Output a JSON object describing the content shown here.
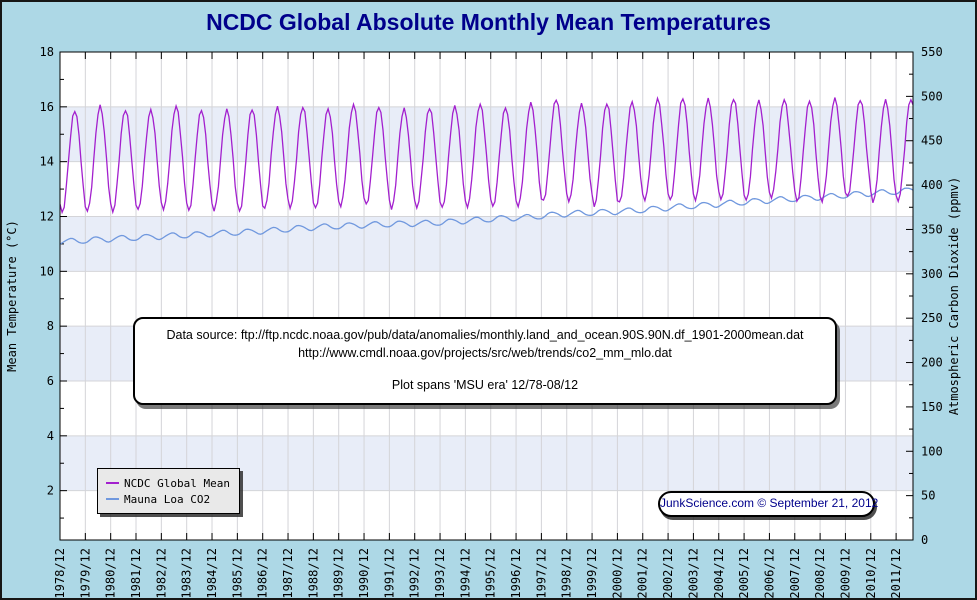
{
  "page": {
    "title": "NCDC Global Absolute Monthly Mean Temperatures",
    "title_color": "#00008B",
    "background_color": "#ADD8E6"
  },
  "annotation_box": {
    "line1": "Data source: ftp://ftp.ncdc.noaa.gov/pub/data/anomalies/monthly.land_and_ocean.90S.90N.df_1901-2000mean.dat",
    "line2": "http://www.cmdl.noaa.gov/projects/src/web/trends/co2_mm_mlo.dat",
    "line3": "Plot spans 'MSU era' 12/78-08/12"
  },
  "credit_box": {
    "text": "JunkScience.com © September 21, 2012"
  },
  "legend": {
    "items": [
      {
        "label": "NCDC Global Mean",
        "color": "#A320CE"
      },
      {
        "label": "Mauna Loa CO2",
        "color": "#7098DE"
      }
    ]
  },
  "chart_data": {
    "type": "line",
    "title": "NCDC Global Absolute Monthly Mean Temperatures",
    "x_axis": {
      "start": "1978/12",
      "end": "2012/08",
      "months_spanned": 405,
      "tick_labels": [
        "1978/12",
        "1979/12",
        "1980/12",
        "1981/12",
        "1982/12",
        "1983/12",
        "1984/12",
        "1985/12",
        "1986/12",
        "1987/12",
        "1988/12",
        "1989/12",
        "1990/12",
        "1991/12",
        "1992/12",
        "1993/12",
        "1994/12",
        "1995/12",
        "1996/12",
        "1997/12",
        "1998/12",
        "1999/12",
        "2000/12",
        "2001/12",
        "2002/12",
        "2003/12",
        "2004/12",
        "2005/12",
        "2006/12",
        "2007/12",
        "2008/12",
        "2009/12",
        "2010/12",
        "2011/12"
      ]
    },
    "y_left": {
      "label": "Mean Temperature (°C)",
      "min": 0.2,
      "max": 18,
      "ticks": [
        18,
        16,
        14,
        12,
        10,
        8,
        6,
        4,
        2
      ],
      "minor_step": 1
    },
    "y_right": {
      "label": "Atmospheric Carbon Dioxide (ppmv)",
      "min": 0,
      "max": 550,
      "ticks": [
        550,
        500,
        450,
        400,
        350,
        300,
        250,
        200,
        150,
        100,
        50,
        0
      ],
      "minor_step": 25
    },
    "series": [
      {
        "name": "NCDC Global Mean",
        "axis": "left",
        "color": "#A320CE",
        "resolution": "monthly",
        "seasonality": "annual cycle: minimum in January, maximum in July",
        "years": [
          1978,
          1979,
          1980,
          1981,
          1982,
          1983,
          1984,
          1985,
          1986,
          1987,
          1988,
          1989,
          1990,
          1991,
          1992,
          1993,
          1994,
          1995,
          1996,
          1997,
          1998,
          1999,
          2000,
          2001,
          2002,
          2003,
          2004,
          2005,
          2006,
          2007,
          2008,
          2009,
          2010,
          2011,
          2012
        ],
        "annual_min_c": [
          12.2,
          12.1,
          12.2,
          12.2,
          12.2,
          12.3,
          12.2,
          12.2,
          12.2,
          12.3,
          12.3,
          12.3,
          12.4,
          12.4,
          12.3,
          12.3,
          12.3,
          12.4,
          12.3,
          12.4,
          12.6,
          12.5,
          12.4,
          12.5,
          12.6,
          12.6,
          12.6,
          12.6,
          12.6,
          12.7,
          12.5,
          12.6,
          12.7,
          12.5,
          12.6
        ],
        "annual_max_c": [
          15.9,
          15.9,
          16.0,
          15.9,
          15.9,
          16.0,
          15.9,
          15.9,
          15.9,
          16.0,
          16.0,
          15.9,
          16.1,
          16.0,
          15.9,
          16.0,
          16.0,
          16.1,
          16.0,
          16.1,
          16.3,
          16.1,
          16.1,
          16.2,
          16.3,
          16.3,
          16.3,
          16.3,
          16.2,
          16.3,
          16.2,
          16.3,
          16.3,
          16.2,
          16.3
        ]
      },
      {
        "name": "Mauna Loa CO2",
        "axis": "right",
        "color": "#7098DE",
        "resolution": "monthly",
        "seasonality": "annual sawtooth: peak in May, trough in autumn, ~6.5 ppmv peak-to-trough",
        "seasonal_amplitude_ppmv": 3.2,
        "years": [
          1978,
          1979,
          1980,
          1981,
          1982,
          1983,
          1984,
          1985,
          1986,
          1987,
          1988,
          1989,
          1990,
          1991,
          1992,
          1993,
          1994,
          1995,
          1996,
          1997,
          1998,
          1999,
          2000,
          2001,
          2002,
          2003,
          2004,
          2005,
          2006,
          2007,
          2008,
          2009,
          2010,
          2011,
          2012
        ],
        "annual_mean_ppmv": [
          335.4,
          336.8,
          338.7,
          340.1,
          341.4,
          343.0,
          344.4,
          346.0,
          347.4,
          349.2,
          351.6,
          353.1,
          354.4,
          355.6,
          356.4,
          357.1,
          358.8,
          360.8,
          362.6,
          363.7,
          366.7,
          368.4,
          369.5,
          371.1,
          373.2,
          375.8,
          377.5,
          379.8,
          381.9,
          383.8,
          385.6,
          387.4,
          389.9,
          391.6,
          393.9
        ]
      }
    ],
    "plot_style": {
      "band_colors": [
        "#FFFFFF",
        "#E8EDF8"
      ],
      "band_height_degrees": 2,
      "grid_color": "#D4D4D8",
      "frame_color": "#000000",
      "grid": "major gridlines at every 2 °C horizontally and every year vertically"
    }
  }
}
